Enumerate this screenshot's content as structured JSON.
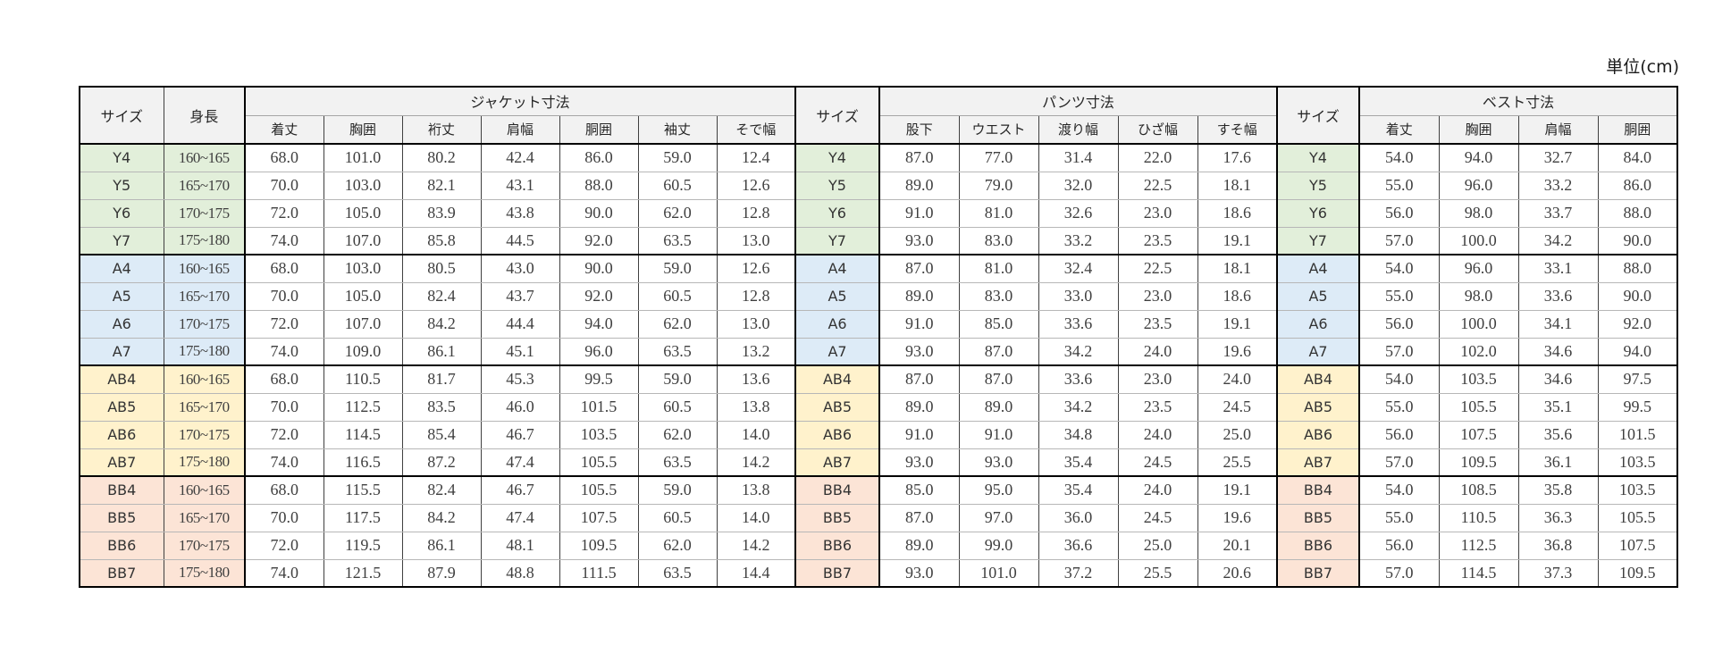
{
  "unit_label": "単位(cm)",
  "headers": {
    "size": "サイズ",
    "height": "身長",
    "jacket_title": "ジャケット寸法",
    "pants_title": "パンツ寸法",
    "vest_title": "ベスト寸法",
    "jacket_cols": [
      "着丈",
      "胸囲",
      "裄丈",
      "肩幅",
      "胴囲",
      "袖丈",
      "そで幅"
    ],
    "pants_cols": [
      "股下",
      "ウエスト",
      "渡り幅",
      "ひざ幅",
      "すそ幅"
    ],
    "vest_cols": [
      "着丈",
      "胸囲",
      "肩幅",
      "胴囲"
    ]
  },
  "colors": {
    "Y": "#e2efda",
    "A": "#ddebf7",
    "AB": "#fff2cc",
    "BB": "#fce4d6",
    "header": "#f2f2f2"
  },
  "rows": [
    {
      "size": "Y4",
      "group": "Y",
      "height": "160~165",
      "jacket": [
        "68.0",
        "101.0",
        "80.2",
        "42.4",
        "86.0",
        "59.0",
        "12.4"
      ],
      "pants": [
        "87.0",
        "77.0",
        "31.4",
        "22.0",
        "17.6"
      ],
      "vest": [
        "54.0",
        "94.0",
        "32.7",
        "84.0"
      ]
    },
    {
      "size": "Y5",
      "group": "Y",
      "height": "165~170",
      "jacket": [
        "70.0",
        "103.0",
        "82.1",
        "43.1",
        "88.0",
        "60.5",
        "12.6"
      ],
      "pants": [
        "89.0",
        "79.0",
        "32.0",
        "22.5",
        "18.1"
      ],
      "vest": [
        "55.0",
        "96.0",
        "33.2",
        "86.0"
      ]
    },
    {
      "size": "Y6",
      "group": "Y",
      "height": "170~175",
      "jacket": [
        "72.0",
        "105.0",
        "83.9",
        "43.8",
        "90.0",
        "62.0",
        "12.8"
      ],
      "pants": [
        "91.0",
        "81.0",
        "32.6",
        "23.0",
        "18.6"
      ],
      "vest": [
        "56.0",
        "98.0",
        "33.7",
        "88.0"
      ]
    },
    {
      "size": "Y7",
      "group": "Y",
      "height": "175~180",
      "jacket": [
        "74.0",
        "107.0",
        "85.8",
        "44.5",
        "92.0",
        "63.5",
        "13.0"
      ],
      "pants": [
        "93.0",
        "83.0",
        "33.2",
        "23.5",
        "19.1"
      ],
      "vest": [
        "57.0",
        "100.0",
        "34.2",
        "90.0"
      ]
    },
    {
      "size": "A4",
      "group": "A",
      "height": "160~165",
      "jacket": [
        "68.0",
        "103.0",
        "80.5",
        "43.0",
        "90.0",
        "59.0",
        "12.6"
      ],
      "pants": [
        "87.0",
        "81.0",
        "32.4",
        "22.5",
        "18.1"
      ],
      "vest": [
        "54.0",
        "96.0",
        "33.1",
        "88.0"
      ]
    },
    {
      "size": "A5",
      "group": "A",
      "height": "165~170",
      "jacket": [
        "70.0",
        "105.0",
        "82.4",
        "43.7",
        "92.0",
        "60.5",
        "12.8"
      ],
      "pants": [
        "89.0",
        "83.0",
        "33.0",
        "23.0",
        "18.6"
      ],
      "vest": [
        "55.0",
        "98.0",
        "33.6",
        "90.0"
      ]
    },
    {
      "size": "A6",
      "group": "A",
      "height": "170~175",
      "jacket": [
        "72.0",
        "107.0",
        "84.2",
        "44.4",
        "94.0",
        "62.0",
        "13.0"
      ],
      "pants": [
        "91.0",
        "85.0",
        "33.6",
        "23.5",
        "19.1"
      ],
      "vest": [
        "56.0",
        "100.0",
        "34.1",
        "92.0"
      ]
    },
    {
      "size": "A7",
      "group": "A",
      "height": "175~180",
      "jacket": [
        "74.0",
        "109.0",
        "86.1",
        "45.1",
        "96.0",
        "63.5",
        "13.2"
      ],
      "pants": [
        "93.0",
        "87.0",
        "34.2",
        "24.0",
        "19.6"
      ],
      "vest": [
        "57.0",
        "102.0",
        "34.6",
        "94.0"
      ]
    },
    {
      "size": "AB4",
      "group": "AB",
      "height": "160~165",
      "jacket": [
        "68.0",
        "110.5",
        "81.7",
        "45.3",
        "99.5",
        "59.0",
        "13.6"
      ],
      "pants": [
        "87.0",
        "87.0",
        "33.6",
        "23.0",
        "24.0"
      ],
      "vest": [
        "54.0",
        "103.5",
        "34.6",
        "97.5"
      ]
    },
    {
      "size": "AB5",
      "group": "AB",
      "height": "165~170",
      "jacket": [
        "70.0",
        "112.5",
        "83.5",
        "46.0",
        "101.5",
        "60.5",
        "13.8"
      ],
      "pants": [
        "89.0",
        "89.0",
        "34.2",
        "23.5",
        "24.5"
      ],
      "vest": [
        "55.0",
        "105.5",
        "35.1",
        "99.5"
      ]
    },
    {
      "size": "AB6",
      "group": "AB",
      "height": "170~175",
      "jacket": [
        "72.0",
        "114.5",
        "85.4",
        "46.7",
        "103.5",
        "62.0",
        "14.0"
      ],
      "pants": [
        "91.0",
        "91.0",
        "34.8",
        "24.0",
        "25.0"
      ],
      "vest": [
        "56.0",
        "107.5",
        "35.6",
        "101.5"
      ]
    },
    {
      "size": "AB7",
      "group": "AB",
      "height": "175~180",
      "jacket": [
        "74.0",
        "116.5",
        "87.2",
        "47.4",
        "105.5",
        "63.5",
        "14.2"
      ],
      "pants": [
        "93.0",
        "93.0",
        "35.4",
        "24.5",
        "25.5"
      ],
      "vest": [
        "57.0",
        "109.5",
        "36.1",
        "103.5"
      ]
    },
    {
      "size": "BB4",
      "group": "BB",
      "height": "160~165",
      "jacket": [
        "68.0",
        "115.5",
        "82.4",
        "46.7",
        "105.5",
        "59.0",
        "13.8"
      ],
      "pants": [
        "85.0",
        "95.0",
        "35.4",
        "24.0",
        "19.1"
      ],
      "vest": [
        "54.0",
        "108.5",
        "35.8",
        "103.5"
      ]
    },
    {
      "size": "BB5",
      "group": "BB",
      "height": "165~170",
      "jacket": [
        "70.0",
        "117.5",
        "84.2",
        "47.4",
        "107.5",
        "60.5",
        "14.0"
      ],
      "pants": [
        "87.0",
        "97.0",
        "36.0",
        "24.5",
        "19.6"
      ],
      "vest": [
        "55.0",
        "110.5",
        "36.3",
        "105.5"
      ]
    },
    {
      "size": "BB6",
      "group": "BB",
      "height": "170~175",
      "jacket": [
        "72.0",
        "119.5",
        "86.1",
        "48.1",
        "109.5",
        "62.0",
        "14.2"
      ],
      "pants": [
        "89.0",
        "99.0",
        "36.6",
        "25.0",
        "20.1"
      ],
      "vest": [
        "56.0",
        "112.5",
        "36.8",
        "107.5"
      ]
    },
    {
      "size": "BB7",
      "group": "BB",
      "height": "175~180",
      "jacket": [
        "74.0",
        "121.5",
        "87.9",
        "48.8",
        "111.5",
        "63.5",
        "14.4"
      ],
      "pants": [
        "93.0",
        "101.0",
        "37.2",
        "25.5",
        "20.6"
      ],
      "vest": [
        "57.0",
        "114.5",
        "37.3",
        "109.5"
      ]
    }
  ]
}
